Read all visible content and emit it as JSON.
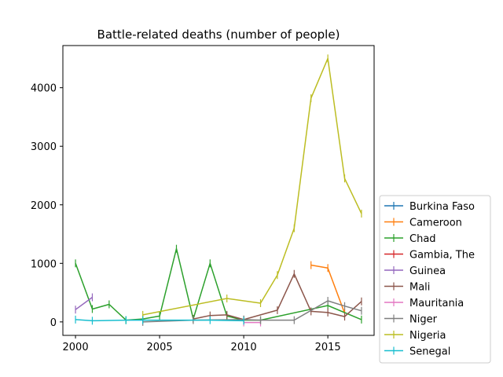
{
  "chart_data": {
    "type": "line",
    "title": "Battle-related deaths (number of people)",
    "xlabel": "",
    "ylabel": "",
    "xlim": [
      1999.25,
      2017.75
    ],
    "ylim": [
      -230,
      4720
    ],
    "xticks": [
      2000,
      2005,
      2010,
      2015
    ],
    "yticks": [
      0,
      1000,
      2000,
      3000,
      4000
    ],
    "grid": false,
    "legend_position": "lower-right outside",
    "series": [
      {
        "name": "Burkina Faso",
        "color": "#1f77b4",
        "x": [],
        "y": []
      },
      {
        "name": "Cameroon",
        "color": "#ff7f0e",
        "x": [
          2014,
          2015,
          2016
        ],
        "y": [
          970,
          920,
          150
        ]
      },
      {
        "name": "Chad",
        "color": "#2ca02c",
        "x": [
          2000,
          2001,
          2002,
          2003,
          2004,
          2005,
          2006,
          2007,
          2008,
          2009,
          2010,
          2011,
          2015,
          2017
        ],
        "y": [
          1000,
          220,
          300,
          30,
          50,
          100,
          1250,
          50,
          1000,
          100,
          30,
          30,
          280,
          40
        ]
      },
      {
        "name": "Gambia, The",
        "color": "#d62728",
        "x": [],
        "y": []
      },
      {
        "name": "Guinea",
        "color": "#9467bd",
        "x": [
          2000,
          2001
        ],
        "y": [
          210,
          420
        ]
      },
      {
        "name": "Mali",
        "color": "#8c564b",
        "x": [
          2007,
          2008,
          2009,
          2010,
          2012,
          2013,
          2014,
          2015,
          2016,
          2017
        ],
        "y": [
          50,
          110,
          120,
          40,
          200,
          820,
          180,
          160,
          90,
          350
        ]
      },
      {
        "name": "Mauritania",
        "color": "#e377c2",
        "x": [
          2010,
          2011
        ],
        "y": [
          -10,
          -10
        ]
      },
      {
        "name": "Niger",
        "color": "#7f7f7f",
        "x": [
          2004,
          2007,
          2010,
          2011,
          2013,
          2015,
          2016,
          2017
        ],
        "y": [
          0,
          30,
          40,
          30,
          30,
          360,
          270,
          190
        ]
      },
      {
        "name": "Nigeria",
        "color": "#bcbd22",
        "x": [
          2004,
          2009,
          2011,
          2012,
          2013,
          2014,
          2015,
          2016,
          2017
        ],
        "y": [
          120,
          400,
          320,
          800,
          1600,
          3820,
          4500,
          2450,
          1850
        ]
      },
      {
        "name": "Senegal",
        "color": "#17becf",
        "x": [
          2000,
          2001,
          2003,
          2004,
          2008,
          2010
        ],
        "y": [
          40,
          20,
          30,
          30,
          30,
          20
        ]
      }
    ]
  }
}
